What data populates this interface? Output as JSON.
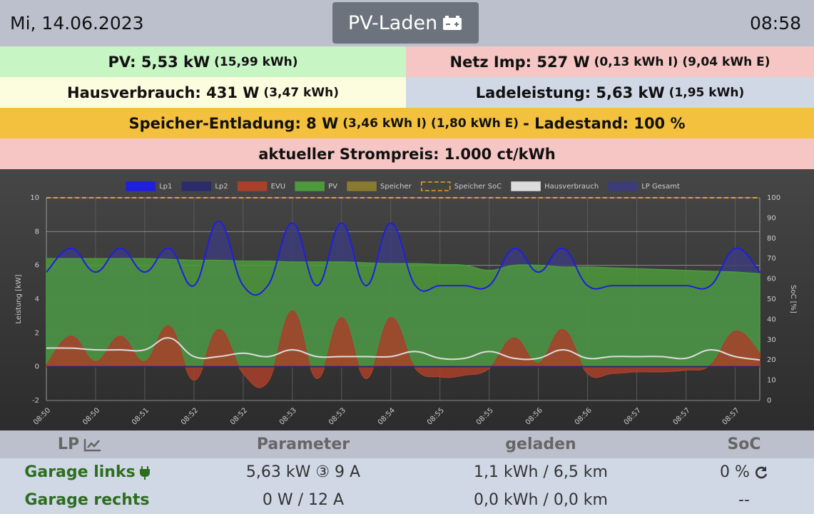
{
  "header": {
    "date": "Mi, 14.06.2023",
    "mode": "PV-Laden",
    "time": "08:58"
  },
  "tiles": [
    {
      "main": "PV: 5,53 kW",
      "detail": "(15,99 kWh)"
    },
    {
      "main": "Netz Imp: 527 W",
      "detail": "(0,13 kWh I) (9,04 kWh E)"
    },
    {
      "main": "Hausverbrauch: 431 W",
      "detail": "(3,47 kWh)"
    },
    {
      "main": "Ladeleistung: 5,63 kW",
      "detail": "(1,95 kWh)"
    },
    {
      "main": "Speicher-Entladung: 8 W",
      "detail": "(3,46 kWh I) (1,80 kWh E)",
      "suffix": "- Ladestand: 100 %"
    },
    {
      "main": "aktueller Strompreis: 1.000 ct/kWh"
    }
  ],
  "chart_data": {
    "type": "line",
    "ylabel": "Leistung [kW]",
    "y2label": "SoC [%]",
    "categories": [
      "08:50",
      null,
      "08:50",
      null,
      "08:51",
      null,
      "08:52",
      null,
      "08:52",
      null,
      "08:53",
      null,
      "08:53",
      null,
      "08:54",
      null,
      "08:55",
      null,
      "08:55",
      null,
      "08:56",
      null,
      "08:56",
      null,
      "08:57",
      null,
      "08:57",
      null,
      "08:57",
      null
    ],
    "ylim": [
      -2,
      10
    ],
    "yticks": [
      -2,
      0,
      2,
      4,
      6,
      8,
      10
    ],
    "y2lim": [
      0,
      100
    ],
    "y2ticks": [
      0,
      10,
      20,
      30,
      40,
      50,
      60,
      70,
      80,
      90,
      100
    ],
    "grid": true,
    "legend": "top",
    "series": [
      {
        "name": "Lp1",
        "color": "#1f1fe0",
        "fill": false,
        "values": [
          5.6,
          7.0,
          5.6,
          7.0,
          5.6,
          7.0,
          4.8,
          8.6,
          4.8,
          4.8,
          8.5,
          4.8,
          8.5,
          4.8,
          8.5,
          4.8,
          4.8,
          4.8,
          4.8,
          7.0,
          5.6,
          7.0,
          4.8,
          4.8,
          4.8,
          4.8,
          4.8,
          4.8,
          7.0,
          5.6
        ]
      },
      {
        "name": "Lp2",
        "color": "#2c2c6c",
        "fill": false,
        "values": [
          0,
          0,
          0,
          0,
          0,
          0,
          0,
          0,
          0,
          0,
          0,
          0,
          0,
          0,
          0,
          0,
          0,
          0,
          0,
          0,
          0,
          0,
          0,
          0,
          0,
          0,
          0,
          0,
          0,
          0
        ]
      },
      {
        "name": "EVU",
        "color": "#a8402a",
        "fill": true,
        "values": [
          0.1,
          1.8,
          0.3,
          1.8,
          0.3,
          2.4,
          -0.8,
          2.2,
          -0.4,
          -0.9,
          3.3,
          -0.7,
          2.9,
          -0.7,
          2.9,
          -0.1,
          -0.6,
          -0.5,
          -0.1,
          1.7,
          0.2,
          2.2,
          -0.4,
          -0.4,
          -0.3,
          -0.3,
          -0.2,
          0.1,
          2.1,
          0.8
        ]
      },
      {
        "name": "PV",
        "color": "#4c9a3c",
        "fill": true,
        "values": [
          6.4,
          6.4,
          6.4,
          6.4,
          6.4,
          6.35,
          6.3,
          6.3,
          6.25,
          6.25,
          6.2,
          6.2,
          6.2,
          6.15,
          6.1,
          6.1,
          6.05,
          6.0,
          5.7,
          6.0,
          6.0,
          5.9,
          5.9,
          5.85,
          5.8,
          5.75,
          5.7,
          5.65,
          5.6,
          5.5
        ]
      },
      {
        "name": "Speicher",
        "color": "#8a7a30",
        "fill": true,
        "values": [
          0,
          0,
          0,
          0,
          0,
          0,
          0,
          0,
          0,
          0,
          0,
          0,
          0,
          0,
          0,
          0,
          0,
          0,
          0,
          0,
          0,
          0,
          0,
          0,
          0,
          0,
          0,
          0,
          0,
          0
        ]
      },
      {
        "name": "Speicher SoC",
        "color": "#e8a020",
        "fill": false,
        "dash": true,
        "axis": "y2",
        "values": [
          100,
          100,
          100,
          100,
          100,
          100,
          100,
          100,
          100,
          100,
          100,
          100,
          100,
          100,
          100,
          100,
          100,
          100,
          100,
          100,
          100,
          100,
          100,
          100,
          100,
          100,
          100,
          100,
          100,
          100
        ]
      },
      {
        "name": "Hausverbrauch",
        "color": "#dddddd",
        "fill": false,
        "values": [
          1.1,
          1.1,
          1.0,
          1.0,
          1.0,
          1.7,
          0.6,
          0.6,
          0.8,
          0.6,
          1.0,
          0.6,
          0.6,
          0.6,
          0.6,
          0.9,
          0.5,
          0.5,
          0.9,
          0.5,
          0.5,
          1.0,
          0.5,
          0.6,
          0.6,
          0.6,
          0.5,
          1.0,
          0.6,
          0.4
        ]
      },
      {
        "name": "LP Gesamt",
        "color": "#3c3c7a",
        "fill": true,
        "values": [
          5.6,
          7.0,
          5.6,
          7.0,
          5.6,
          7.0,
          4.8,
          8.6,
          4.8,
          4.8,
          8.5,
          4.8,
          8.5,
          4.8,
          8.5,
          4.8,
          4.8,
          4.8,
          4.8,
          7.0,
          5.6,
          7.0,
          4.8,
          4.8,
          4.8,
          4.8,
          4.8,
          4.8,
          7.0,
          5.6
        ]
      }
    ]
  },
  "table": {
    "header": [
      "LP",
      "Parameter",
      "geladen",
      "SoC"
    ],
    "rows": [
      [
        "Garage links",
        "5,63 kW ③ 9 A",
        "1,1 kWh / 6,5 km",
        "0 %"
      ],
      [
        "Garage rechts",
        "0 W / 12 A",
        "0,0 kWh / 0,0 km",
        "--"
      ]
    ]
  }
}
